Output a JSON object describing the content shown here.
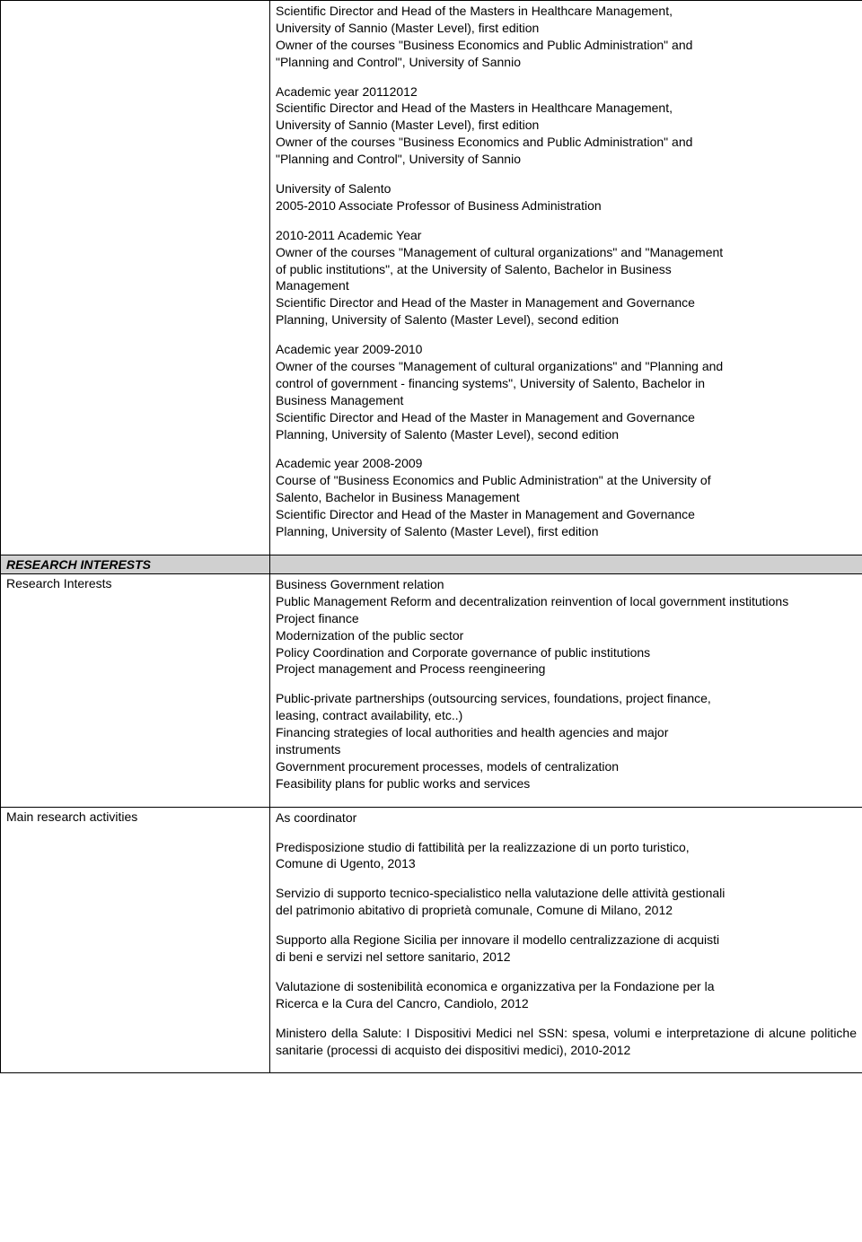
{
  "education": {
    "blocks": [
      {
        "lines": [
          "Scientific Director and Head of the Masters in Healthcare Management,",
          "University of Sannio (Master Level), first edition",
          "Owner of the courses \"Business Economics and Public Administration\" and",
          "\"Planning and Control\", University of Sannio"
        ]
      },
      {
        "lines": [
          "Academic year 20112012",
          "Scientific Director and Head of the Masters in Healthcare Management,",
          "University of Sannio (Master Level), first edition",
          "Owner of the courses \"Business Economics and Public Administration\" and",
          "\"Planning and Control\", University of Sannio"
        ]
      },
      {
        "lines": [
          "University of Salento",
          "2005-2010 Associate Professor of Business Administration"
        ]
      },
      {
        "lines": [
          "2010-2011 Academic Year",
          "Owner of the courses \"Management of cultural organizations\" and \"Management",
          "of public institutions\", at the University of Salento, Bachelor in Business",
          "Management",
          "Scientific Director and Head of the Master in Management and Governance",
          "Planning, University of Salento (Master Level), second edition"
        ]
      },
      {
        "lines": [
          "Academic year 2009-2010",
          "Owner of the courses \"Management of cultural organizations\" and \"Planning and",
          "control of government - financing systems\", University of Salento, Bachelor in",
          "Business Management",
          "Scientific Director and Head of the Master in Management and Governance",
          "Planning, University of Salento (Master Level), second edition"
        ]
      },
      {
        "lines": [
          "Academic year 2008-2009",
          "Course of \"Business Economics and Public Administration\" at the University of",
          "Salento, Bachelor in Business Management",
          "Scientific Director and Head of the Master in Management and Governance",
          "Planning, University of Salento (Master Level), first edition"
        ]
      }
    ]
  },
  "section_header": "RESEARCH INTERESTS",
  "research_interests": {
    "label": "Research Interests",
    "blocks": [
      {
        "lines": [
          "Business Government relation"
        ]
      },
      {
        "justify": true,
        "lines": [
          "Public Management Reform and decentralization reinvention of local government institutions"
        ]
      },
      {
        "lines": [
          "Project finance",
          "Modernization of the public sector",
          "Policy Coordination and  Corporate governance of public institutions",
          "Project management and Process reengineering"
        ]
      },
      {
        "lines": [
          "Public-private partnerships (outsourcing services, foundations, project finance,",
          "leasing, contract availability, etc..)",
          " Financing strategies of local authorities and health agencies and major",
          "instruments",
          "Government procurement processes, models of centralization",
          "Feasibility plans for public works and services"
        ],
        "prebreak": true
      }
    ]
  },
  "main_activities": {
    "label": "Main research activities",
    "blocks": [
      {
        "lines": [
          "As coordinator"
        ]
      },
      {
        "lines": [
          "Predisposizione studio di fattibilità per la realizzazione di un porto turistico,",
          "Comune di Ugento, 2013"
        ]
      },
      {
        "lines": [
          "Servizio di supporto tecnico-specialistico nella valutazione delle attività gestionali",
          "del patrimonio abitativo di proprietà comunale, Comune di Milano, 2012"
        ]
      },
      {
        "lines": [
          "Supporto alla Regione Sicilia per innovare il modello centralizzazione di acquisti",
          "di beni e servizi nel settore sanitario, 2012"
        ]
      },
      {
        "lines": [
          "Valutazione di sostenibilità economica e organizzativa per la Fondazione per la",
          "Ricerca e la Cura del Cancro, Candiolo, 2012"
        ]
      },
      {
        "justify": true,
        "lines": [
          "Ministero della Salute: I Dispositivi Medici nel SSN: spesa, volumi e interpretazione di alcune politiche sanitarie (processi di acquisto dei dispositivi medici), 2010-2012"
        ]
      }
    ]
  }
}
